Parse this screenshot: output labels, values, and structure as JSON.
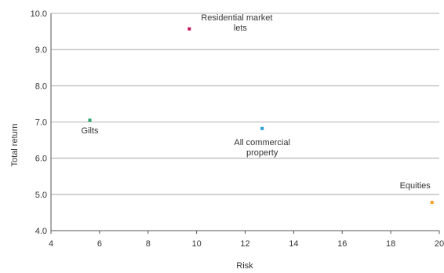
{
  "chart_data": {
    "type": "scatter",
    "title": "",
    "xlabel": "Risk",
    "ylabel": "Total return",
    "xlim": [
      4,
      20
    ],
    "ylim": [
      4.0,
      10.0
    ],
    "x_ticks": [
      "4",
      "6",
      "8",
      "10",
      "12",
      "14",
      "16",
      "18",
      "20"
    ],
    "y_ticks": [
      "4.0",
      "5.0",
      "6.0",
      "7.0",
      "8.0",
      "9.0",
      "10.0"
    ],
    "grid": "horizontal",
    "legend": "none",
    "points": [
      {
        "label": "Residential market lets",
        "label_lines": [
          "Residential market",
          "lets"
        ],
        "x": 9.7,
        "y": 9.57,
        "color": "#c0185f"
      },
      {
        "label": "Gilts",
        "label_lines": [
          "Gilts"
        ],
        "x": 5.6,
        "y": 7.05,
        "color": "#2aa56e"
      },
      {
        "label": "All commercial property",
        "label_lines": [
          "All commercial",
          "property"
        ],
        "x": 12.7,
        "y": 6.82,
        "color": "#2b9fd6"
      },
      {
        "label": "Equities",
        "label_lines": [
          "Equities"
        ],
        "x": 19.7,
        "y": 4.78,
        "color": "#f5a02a"
      }
    ]
  }
}
